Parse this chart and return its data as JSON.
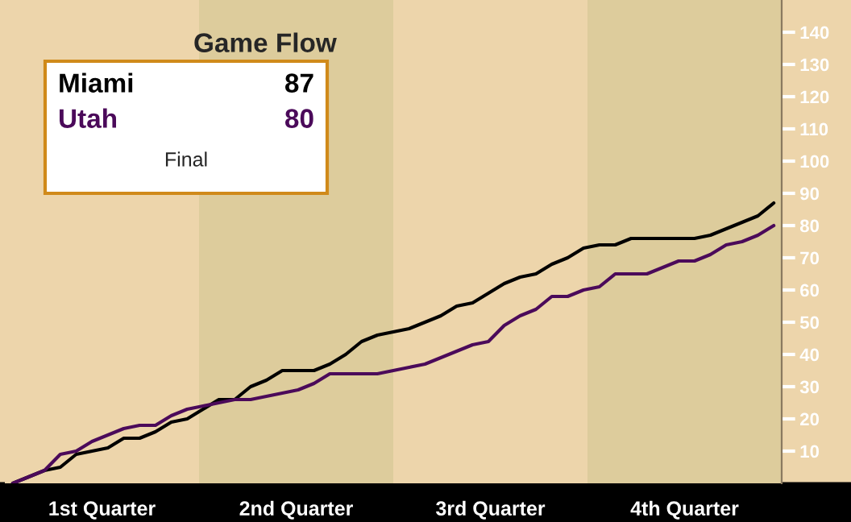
{
  "chart_data": {
    "type": "line",
    "title": "Game Flow",
    "categories": [
      null,
      null,
      null,
      null,
      null,
      null,
      null,
      null,
      null,
      null,
      null,
      null,
      null,
      null,
      null,
      null,
      null,
      null,
      null,
      null,
      null,
      null,
      null,
      null,
      null,
      null,
      null,
      null,
      null,
      null,
      null,
      null,
      null,
      null,
      null,
      null,
      null,
      null,
      null,
      null,
      null,
      null,
      null,
      null,
      null,
      null,
      null,
      null,
      null
    ],
    "series": [
      {
        "name": "Miami",
        "color": "#000000",
        "values": [
          0,
          2,
          4,
          5,
          9,
          10,
          11,
          14,
          14,
          16,
          19,
          20,
          23,
          26,
          26,
          30,
          32,
          35,
          35,
          35,
          37,
          40,
          44,
          46,
          47,
          48,
          50,
          52,
          55,
          56,
          59,
          62,
          64,
          65,
          68,
          70,
          73,
          74,
          74,
          76,
          76,
          76,
          76,
          76,
          77,
          79,
          81,
          83,
          87
        ]
      },
      {
        "name": "Utah",
        "color": "#4b0a5a",
        "values": [
          0,
          2,
          4,
          9,
          10,
          13,
          15,
          17,
          18,
          18,
          21,
          23,
          24,
          25,
          26,
          26,
          27,
          28,
          29,
          31,
          34,
          34,
          34,
          34,
          35,
          36,
          37,
          39,
          41,
          43,
          44,
          49,
          52,
          54,
          58,
          58,
          60,
          61,
          65,
          65,
          65,
          67,
          69,
          69,
          71,
          74,
          75,
          77,
          80
        ]
      }
    ],
    "ylim": [
      0,
      150
    ],
    "yticks": [
      10,
      20,
      30,
      40,
      50,
      60,
      70,
      80,
      90,
      100,
      110,
      120,
      130,
      140
    ],
    "tick_labels": "y",
    "annotations": [
      "87",
      "80",
      "Final",
      "1st Quarter",
      "2nd Quarter",
      "3rd Quarter",
      "4th Quarter"
    ],
    "grid": false
  }
}
